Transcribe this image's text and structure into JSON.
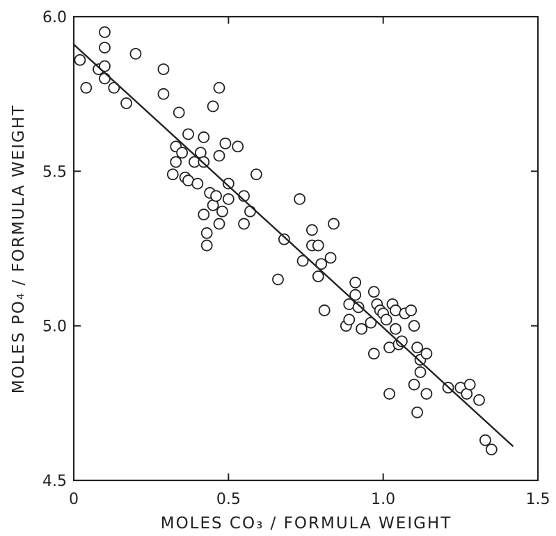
{
  "chart_data": {
    "type": "scatter",
    "title": "",
    "xlabel": "MOLES CO₃ / FORMULA WEIGHT",
    "ylabel": "MOLES PO₄ / FORMULA WEIGHT",
    "xlim": [
      0,
      1.5
    ],
    "ylim": [
      4.5,
      6.0
    ],
    "x_ticks": [
      0,
      0.5,
      1.0,
      1.5
    ],
    "x_tick_labels": [
      "0",
      "0.5",
      "1.0",
      "1.5"
    ],
    "y_ticks": [
      4.5,
      5.0,
      5.5,
      6.0
    ],
    "y_tick_labels": [
      "4.5",
      "5.0",
      "5.5",
      "6.0"
    ],
    "grid": false,
    "legend": "none",
    "marker": "open-circle",
    "points": [
      [
        0.02,
        5.86
      ],
      [
        0.04,
        5.77
      ],
      [
        0.08,
        5.83
      ],
      [
        0.1,
        5.8
      ],
      [
        0.1,
        5.84
      ],
      [
        0.1,
        5.95
      ],
      [
        0.1,
        5.9
      ],
      [
        0.13,
        5.77
      ],
      [
        0.17,
        5.72
      ],
      [
        0.2,
        5.88
      ],
      [
        0.29,
        5.75
      ],
      [
        0.29,
        5.83
      ],
      [
        0.32,
        5.49
      ],
      [
        0.33,
        5.58
      ],
      [
        0.33,
        5.53
      ],
      [
        0.34,
        5.69
      ],
      [
        0.35,
        5.56
      ],
      [
        0.36,
        5.48
      ],
      [
        0.37,
        5.47
      ],
      [
        0.37,
        5.62
      ],
      [
        0.39,
        5.53
      ],
      [
        0.4,
        5.46
      ],
      [
        0.41,
        5.56
      ],
      [
        0.42,
        5.61
      ],
      [
        0.42,
        5.53
      ],
      [
        0.42,
        5.36
      ],
      [
        0.43,
        5.26
      ],
      [
        0.43,
        5.3
      ],
      [
        0.44,
        5.43
      ],
      [
        0.45,
        5.39
      ],
      [
        0.45,
        5.71
      ],
      [
        0.46,
        5.42
      ],
      [
        0.47,
        5.33
      ],
      [
        0.47,
        5.55
      ],
      [
        0.47,
        5.77
      ],
      [
        0.48,
        5.37
      ],
      [
        0.49,
        5.59
      ],
      [
        0.5,
        5.46
      ],
      [
        0.5,
        5.41
      ],
      [
        0.53,
        5.58
      ],
      [
        0.55,
        5.33
      ],
      [
        0.55,
        5.42
      ],
      [
        0.57,
        5.37
      ],
      [
        0.59,
        5.49
      ],
      [
        0.66,
        5.15
      ],
      [
        0.68,
        5.28
      ],
      [
        0.73,
        5.41
      ],
      [
        0.74,
        5.21
      ],
      [
        0.77,
        5.31
      ],
      [
        0.77,
        5.26
      ],
      [
        0.79,
        5.26
      ],
      [
        0.79,
        5.16
      ],
      [
        0.8,
        5.2
      ],
      [
        0.81,
        5.05
      ],
      [
        0.83,
        5.22
      ],
      [
        0.84,
        5.33
      ],
      [
        0.88,
        5.0
      ],
      [
        0.89,
        5.02
      ],
      [
        0.89,
        5.07
      ],
      [
        0.91,
        5.14
      ],
      [
        0.91,
        5.1
      ],
      [
        0.92,
        5.06
      ],
      [
        0.93,
        4.99
      ],
      [
        0.96,
        5.01
      ],
      [
        0.97,
        4.91
      ],
      [
        0.97,
        5.11
      ],
      [
        0.98,
        5.07
      ],
      [
        0.99,
        5.05
      ],
      [
        1.0,
        5.04
      ],
      [
        1.01,
        5.02
      ],
      [
        1.02,
        4.78
      ],
      [
        1.02,
        4.93
      ],
      [
        1.03,
        5.07
      ],
      [
        1.04,
        4.99
      ],
      [
        1.04,
        5.05
      ],
      [
        1.05,
        4.94
      ],
      [
        1.06,
        4.95
      ],
      [
        1.07,
        5.04
      ],
      [
        1.09,
        5.05
      ],
      [
        1.1,
        5.0
      ],
      [
        1.1,
        4.81
      ],
      [
        1.11,
        4.72
      ],
      [
        1.11,
        4.93
      ],
      [
        1.12,
        4.85
      ],
      [
        1.12,
        4.89
      ],
      [
        1.14,
        4.91
      ],
      [
        1.14,
        4.78
      ],
      [
        1.21,
        4.8
      ],
      [
        1.25,
        4.8
      ],
      [
        1.27,
        4.78
      ],
      [
        1.28,
        4.81
      ],
      [
        1.31,
        4.76
      ],
      [
        1.33,
        4.63
      ],
      [
        1.35,
        4.6
      ]
    ],
    "fit_line": {
      "x": [
        0.0,
        1.42
      ],
      "y": [
        5.91,
        4.61
      ]
    }
  }
}
